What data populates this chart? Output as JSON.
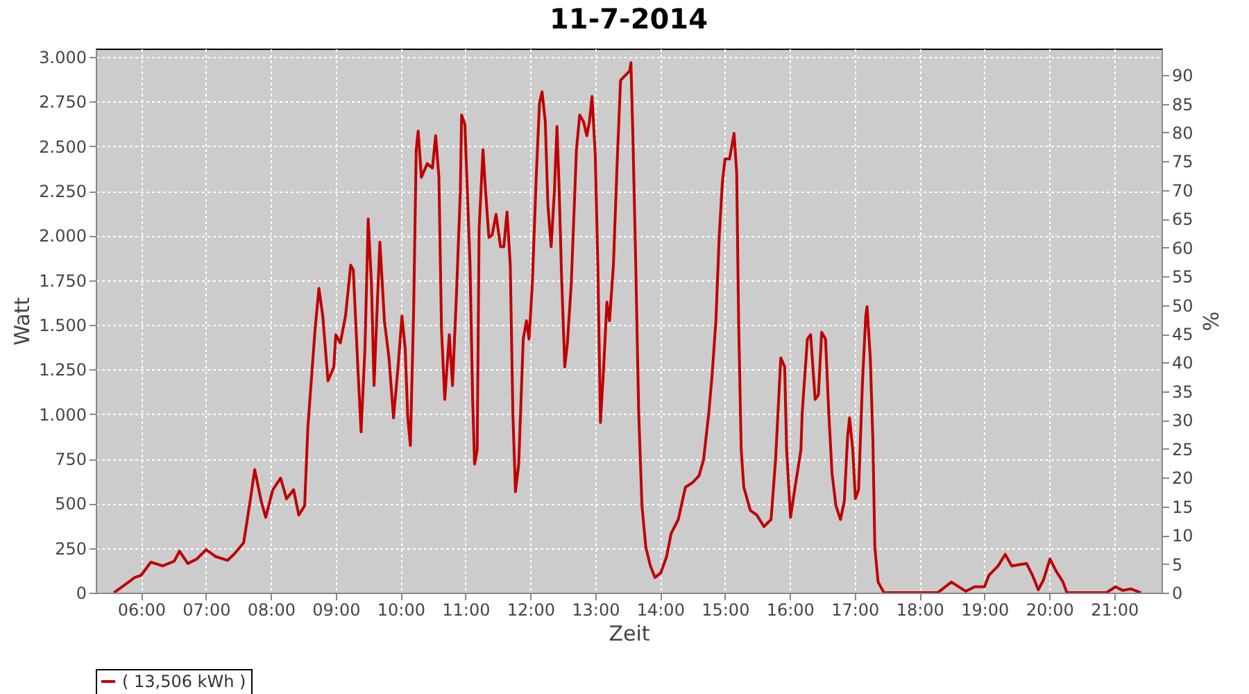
{
  "chart_data": {
    "type": "line",
    "title": "11-7-2014",
    "xlabel": "Zeit",
    "ylabel": "Watt",
    "y2label": "%",
    "x": [
      5.58,
      5.76,
      5.9,
      6.0,
      6.15,
      6.33,
      6.51,
      6.59,
      6.72,
      6.86,
      7.0,
      7.15,
      7.33,
      7.43,
      7.58,
      7.68,
      7.75,
      7.85,
      7.92,
      8.03,
      8.15,
      8.24,
      8.35,
      8.43,
      8.52,
      8.57,
      8.68,
      8.74,
      8.8,
      8.88,
      8.97,
      9.0,
      9.07,
      9.15,
      9.23,
      9.27,
      9.34,
      9.39,
      9.45,
      9.5,
      9.55,
      9.59,
      9.63,
      9.68,
      9.75,
      9.82,
      9.89,
      9.96,
      10.02,
      10.07,
      10.11,
      10.15,
      10.2,
      10.24,
      10.27,
      10.32,
      10.41,
      10.49,
      10.54,
      10.59,
      10.63,
      10.68,
      10.75,
      10.8,
      10.86,
      10.92,
      10.94,
      10.99,
      11.01,
      11.07,
      11.11,
      11.14,
      11.18,
      11.21,
      11.27,
      11.3,
      11.36,
      11.41,
      11.47,
      11.54,
      11.59,
      11.64,
      11.69,
      11.73,
      11.77,
      11.82,
      11.89,
      11.94,
      11.98,
      12.03,
      12.09,
      12.14,
      12.18,
      12.23,
      12.27,
      12.32,
      12.37,
      12.41,
      12.44,
      12.48,
      12.53,
      12.57,
      12.63,
      12.68,
      12.71,
      12.76,
      12.82,
      12.87,
      12.91,
      12.95,
      13.0,
      13.04,
      13.08,
      13.13,
      13.18,
      13.22,
      13.28,
      13.34,
      13.39,
      13.46,
      13.53,
      13.55,
      13.58,
      13.62,
      13.67,
      13.72,
      13.78,
      13.85,
      13.92,
      14.01,
      14.1,
      14.17,
      14.28,
      14.39,
      14.5,
      14.6,
      14.67,
      14.75,
      14.8,
      14.86,
      14.91,
      14.96,
      15.0,
      15.07,
      15.14,
      15.18,
      15.21,
      15.25,
      15.29,
      15.39,
      15.49,
      15.6,
      15.71,
      15.78,
      15.86,
      15.92,
      15.95,
      16.01,
      16.08,
      16.17,
      16.19,
      16.27,
      16.32,
      16.39,
      16.44,
      16.49,
      16.55,
      16.6,
      16.65,
      16.71,
      16.78,
      16.84,
      16.89,
      16.92,
      16.97,
      17.01,
      17.06,
      17.12,
      17.17,
      17.19,
      17.24,
      17.28,
      17.31,
      17.36,
      17.45,
      18.28,
      18.49,
      18.71,
      18.85,
      19.0,
      19.07,
      19.21,
      19.32,
      19.42,
      19.56,
      19.65,
      19.74,
      19.83,
      19.91,
      20.01,
      20.1,
      20.21,
      20.27,
      20.88,
      21.02,
      21.13,
      21.26,
      21.41
    ],
    "series": [
      {
        "name": "( 13,506 kWh )",
        "color": "#c00000",
        "values": [
          0,
          47,
          85,
          98,
          171,
          150,
          176,
          233,
          163,
          189,
          241,
          202,
          181,
          215,
          280,
          513,
          689,
          513,
          422,
          577,
          642,
          526,
          577,
          435,
          487,
          927,
          1471,
          1704,
          1549,
          1186,
          1264,
          1445,
          1399,
          1549,
          1834,
          1808,
          1264,
          901,
          1368,
          2093,
          1730,
          1160,
          1523,
          1963,
          1523,
          1315,
          979,
          1264,
          1549,
          1368,
          979,
          824,
          1575,
          2481,
          2585,
          2326,
          2403,
          2378,
          2559,
          2326,
          1471,
          1082,
          1445,
          1160,
          1665,
          2248,
          2675,
          2624,
          2429,
          1834,
          1082,
          720,
          798,
          2041,
          2481,
          2300,
          1989,
          2002,
          2119,
          1937,
          1937,
          2132,
          1834,
          1005,
          565,
          720,
          1420,
          1523,
          1420,
          1730,
          2326,
          2740,
          2805,
          2637,
          2171,
          1937,
          2248,
          2611,
          2300,
          1782,
          1264,
          1393,
          1730,
          2197,
          2481,
          2675,
          2637,
          2559,
          2637,
          2779,
          2455,
          1834,
          953,
          1264,
          1627,
          1523,
          1834,
          2429,
          2869,
          2896,
          2921,
          2968,
          2559,
          1911,
          1005,
          487,
          254,
          150,
          85,
          111,
          202,
          332,
          410,
          591,
          616,
          655,
          746,
          1005,
          1212,
          1523,
          1989,
          2300,
          2429,
          2429,
          2572,
          2352,
          1523,
          798,
          591,
          461,
          435,
          370,
          410,
          746,
          1315,
          1264,
          798,
          422,
          591,
          798,
          1005,
          1420,
          1445,
          1082,
          1108,
          1458,
          1420,
          1005,
          668,
          487,
          410,
          513,
          876,
          979,
          798,
          526,
          577,
          1186,
          1549,
          1601,
          1315,
          850,
          254,
          60,
          0,
          0,
          60,
          8,
          33,
          33,
          98,
          150,
          215,
          150,
          158,
          163,
          98,
          16,
          72,
          189,
          124,
          60,
          0,
          0,
          33,
          13,
          21,
          0
        ]
      }
    ],
    "xlim": [
      5.3,
      21.73
    ],
    "xticks": [
      {
        "value": 6,
        "label": "06:00"
      },
      {
        "value": 7,
        "label": "07:00"
      },
      {
        "value": 8,
        "label": "08:00"
      },
      {
        "value": 9,
        "label": "09:00"
      },
      {
        "value": 10,
        "label": "10:00"
      },
      {
        "value": 11,
        "label": "11:00"
      },
      {
        "value": 12,
        "label": "12:00"
      },
      {
        "value": 13,
        "label": "13:00"
      },
      {
        "value": 14,
        "label": "14:00"
      },
      {
        "value": 15,
        "label": "15:00"
      },
      {
        "value": 16,
        "label": "16:00"
      },
      {
        "value": 17,
        "label": "17:00"
      },
      {
        "value": 18,
        "label": "18:00"
      },
      {
        "value": 19,
        "label": "19:00"
      },
      {
        "value": 20,
        "label": "20:00"
      },
      {
        "value": 21,
        "label": "21:00"
      }
    ],
    "ylim": [
      0,
      3047
    ],
    "yticks": [
      0,
      250,
      500,
      750,
      {
        "value": 1000,
        "label": "1.000"
      },
      {
        "value": 1250,
        "label": "1.250"
      },
      {
        "value": 1500,
        "label": "1.500"
      },
      {
        "value": 1750,
        "label": "1.750"
      },
      {
        "value": 2000,
        "label": "2.000"
      },
      {
        "value": 2250,
        "label": "2.250"
      },
      {
        "value": 2500,
        "label": "2.500"
      },
      {
        "value": 2750,
        "label": "2.750"
      },
      {
        "value": 3000,
        "label": "3.000"
      }
    ],
    "y2lim": [
      0,
      94.6
    ],
    "y2ticks": [
      0,
      5,
      10,
      15,
      20,
      25,
      30,
      35,
      40,
      45,
      50,
      55,
      60,
      65,
      70,
      75,
      80,
      85,
      90
    ],
    "grid": true,
    "legend": "bottom",
    "marker": "none",
    "line_style": "solid"
  }
}
